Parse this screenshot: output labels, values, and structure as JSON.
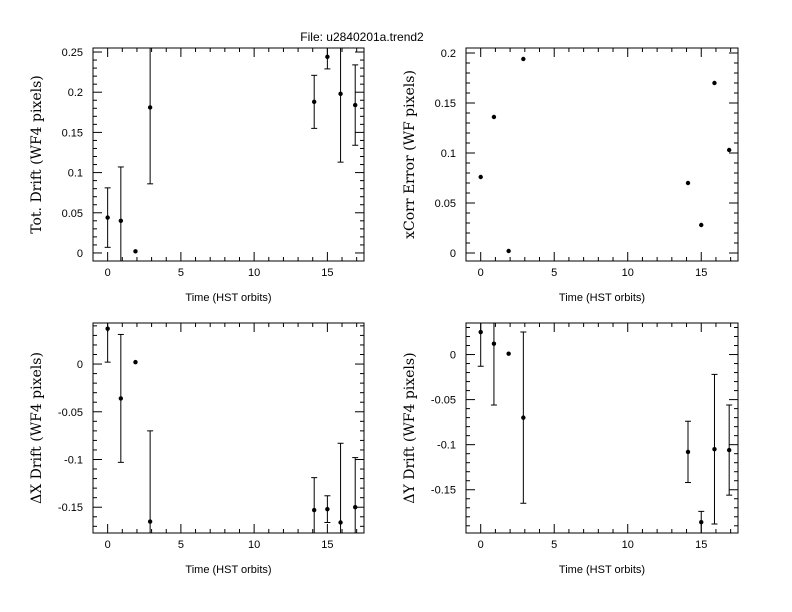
{
  "figure": {
    "title": "File: u2840201a.trend2"
  },
  "chart_data": [
    {
      "type": "scatter",
      "id": "tot-drift",
      "xlabel": "Time (HST orbits)",
      "ylabel": "Tot. Drift (WF4 pixels)",
      "xlim": [
        -1,
        17.5
      ],
      "ylim": [
        -0.01,
        0.255
      ],
      "xticks": [
        0,
        5,
        10,
        15
      ],
      "yticks": [
        0,
        0.05,
        0.1,
        0.15,
        0.2,
        0.25
      ],
      "ytick_labels": [
        "0",
        "0.05",
        "0.1",
        "0.15",
        "0.2",
        "0.25"
      ],
      "x": [
        0,
        0.9,
        1.9,
        2.9,
        14.1,
        15,
        15.9,
        16.9
      ],
      "y": [
        0.044,
        0.04,
        0.002,
        0.181,
        0.188,
        0.244,
        0.198,
        0.184
      ],
      "yerr": [
        0.037,
        0.067,
        0,
        0.095,
        0.033,
        0.015,
        0.085,
        0.05
      ]
    },
    {
      "type": "scatter",
      "id": "xcorr-error",
      "xlabel": "Time (HST orbits)",
      "ylabel": "xCorr Error (WF pixels)",
      "xlim": [
        -1,
        17.5
      ],
      "ylim": [
        -0.008,
        0.205
      ],
      "xticks": [
        0,
        5,
        10,
        15
      ],
      "yticks": [
        0,
        0.05,
        0.1,
        0.15,
        0.2
      ],
      "ytick_labels": [
        "0",
        "0.05",
        "0.1",
        "0.15",
        "0.2"
      ],
      "x": [
        0,
        0.9,
        1.9,
        2.9,
        14.1,
        15,
        15.9,
        16.9
      ],
      "y": [
        0.076,
        0.136,
        0.002,
        0.194,
        0.07,
        0.028,
        0.17,
        0.103
      ],
      "yerr": [
        0,
        0,
        0,
        0,
        0,
        0,
        0,
        0
      ]
    },
    {
      "type": "scatter",
      "id": "dx-drift",
      "xlabel": "Time (HST orbits)",
      "ylabel": "ΔX Drift (WF4 pixels)",
      "xlim": [
        -1,
        17.5
      ],
      "ylim": [
        -0.177,
        0.043
      ],
      "xticks": [
        0,
        5,
        10,
        15
      ],
      "yticks": [
        0,
        -0.05,
        -0.1,
        -0.15
      ],
      "ytick_labels": [
        "0",
        "-0.05",
        "-0.1",
        "-0.15"
      ],
      "x": [
        0,
        0.9,
        1.9,
        2.9,
        14.1,
        15,
        15.9,
        16.9
      ],
      "y": [
        0.037,
        -0.036,
        0.002,
        -0.165,
        -0.153,
        -0.152,
        -0.166,
        -0.15
      ],
      "yerr": [
        0.035,
        0.067,
        0,
        0.095,
        0.034,
        0.014,
        0.083,
        0.052
      ]
    },
    {
      "type": "scatter",
      "id": "dy-drift",
      "xlabel": "Time (HST orbits)",
      "ylabel": "ΔY Drift (WF4 pixels)",
      "xlim": [
        -1,
        17.5
      ],
      "ylim": [
        -0.198,
        0.035
      ],
      "xticks": [
        0,
        5,
        10,
        15
      ],
      "yticks": [
        0,
        -0.05,
        -0.1,
        -0.15
      ],
      "ytick_labels": [
        "0",
        "-0.05",
        "-0.1",
        "-0.15"
      ],
      "x": [
        0,
        0.9,
        1.9,
        2.9,
        14.1,
        15,
        15.9,
        16.9
      ],
      "y": [
        0.025,
        0.012,
        0.001,
        -0.07,
        -0.108,
        -0.186,
        -0.105,
        -0.106
      ],
      "yerr": [
        0.038,
        0.068,
        0,
        0.095,
        0.034,
        0.012,
        0.083,
        0.05
      ]
    }
  ]
}
